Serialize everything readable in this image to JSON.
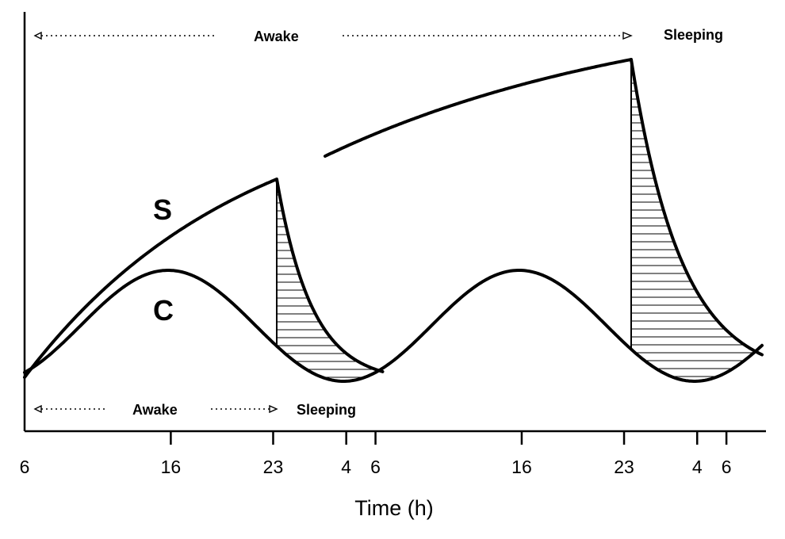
{
  "diagram": {
    "axis": {
      "title": "Time (h)",
      "ticks": [
        {
          "label": "6",
          "hour": 0
        },
        {
          "label": "16",
          "hour": 10
        },
        {
          "label": "23",
          "hour": 17
        },
        {
          "label": "4",
          "hour": 22
        },
        {
          "label": "6",
          "hour": 24
        },
        {
          "label": "16",
          "hour": 34
        },
        {
          "label": "23",
          "hour": 41
        },
        {
          "label": "4",
          "hour": 46
        },
        {
          "label": "6",
          "hour": 48
        }
      ]
    },
    "curves": {
      "s_label": "S",
      "c_label": "C"
    },
    "states": {
      "awake_top": "Awake",
      "sleeping_top": "Sleeping",
      "awake_bottom": "Awake",
      "sleeping_bottom": "Sleeping"
    }
  }
}
